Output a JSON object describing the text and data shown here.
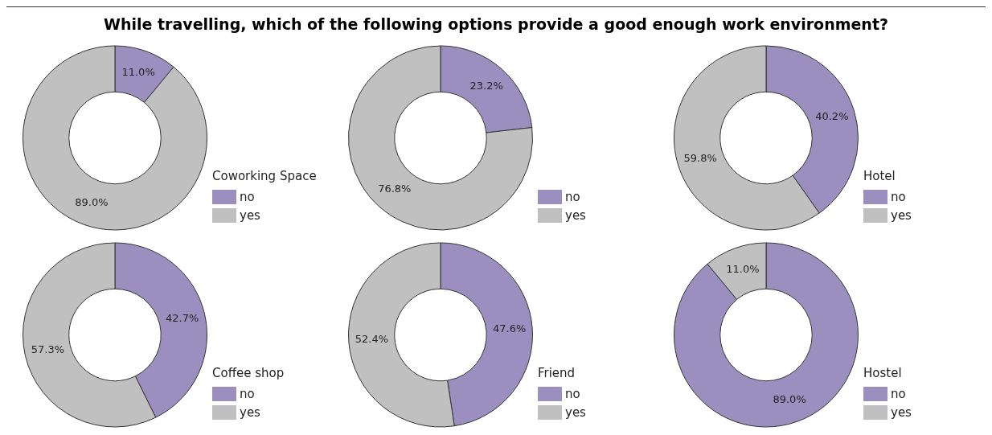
{
  "chart_data": [
    {
      "type": "donut",
      "title": "While travelling, which of the following options provide a good enough work environment?",
      "legend_title": "Coworking Space",
      "legend": "right",
      "categories": [
        "no",
        "yes"
      ],
      "values": [
        11.0,
        89.0
      ],
      "value_labels": [
        "11.0%",
        "89.0%"
      ],
      "colors": [
        "#9b8fbf",
        "#c0c0c0"
      ]
    },
    {
      "type": "donut",
      "legend": "right",
      "categories": [
        "no",
        "yes"
      ],
      "values": [
        23.2,
        76.8
      ],
      "value_labels": [
        "23.2%",
        "76.8%"
      ],
      "colors": [
        "#9b8fbf",
        "#c0c0c0"
      ]
    },
    {
      "type": "donut",
      "legend_title": "Hotel",
      "legend": "right",
      "categories": [
        "no",
        "yes"
      ],
      "values": [
        40.2,
        59.8
      ],
      "value_labels": [
        "40.2%",
        "59.8%"
      ],
      "colors": [
        "#9b8fbf",
        "#c0c0c0"
      ]
    },
    {
      "type": "donut",
      "legend_title": "Coffee shop",
      "legend": "right",
      "categories": [
        "no",
        "yes"
      ],
      "values": [
        42.7,
        57.3
      ],
      "value_labels": [
        "42.7%",
        "57.3%"
      ],
      "colors": [
        "#9b8fbf",
        "#c0c0c0"
      ]
    },
    {
      "type": "donut",
      "legend_title": "Friend",
      "legend": "right",
      "categories": [
        "no",
        "yes"
      ],
      "values": [
        47.6,
        52.4
      ],
      "value_labels": [
        "47.6%",
        "52.4%"
      ],
      "colors": [
        "#9b8fbf",
        "#c0c0c0"
      ]
    },
    {
      "type": "donut",
      "legend_title": "Hostel",
      "legend": "right",
      "categories": [
        "no",
        "yes"
      ],
      "values": [
        89.0,
        11.0
      ],
      "value_labels": [
        "89.0%",
        "11.0%"
      ],
      "colors": [
        "#9b8fbf",
        "#c0c0c0"
      ]
    }
  ]
}
